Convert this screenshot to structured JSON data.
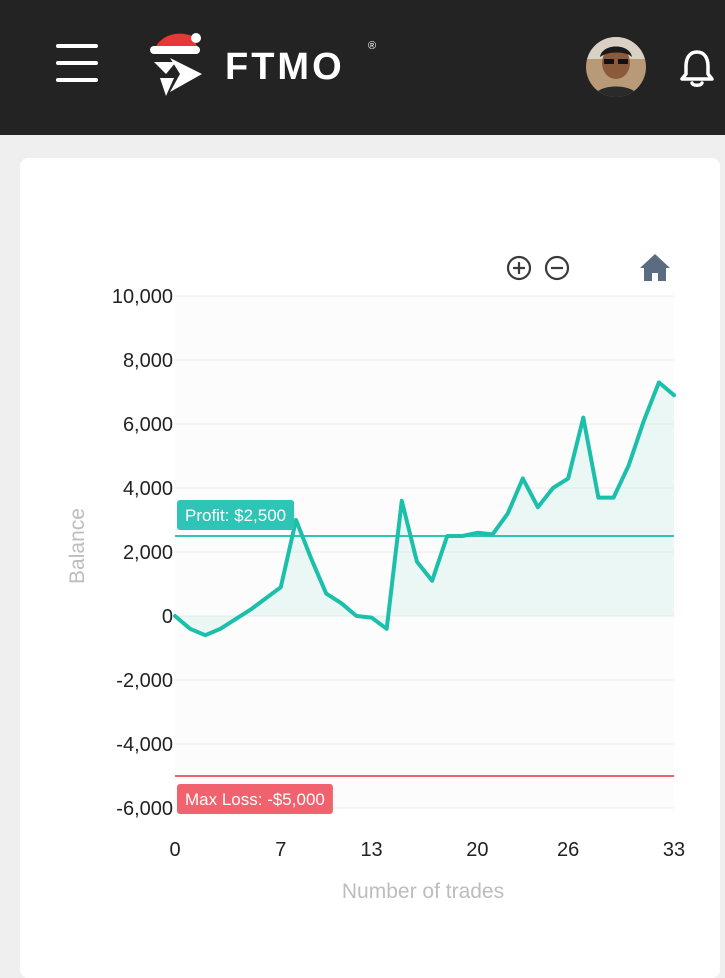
{
  "header": {
    "brand": "FTMO",
    "registered_mark": "®",
    "menu_icon": "hamburger-menu-icon",
    "logo_icon": "ftmo-logo-santa-hat-icon",
    "avatar_icon": "user-avatar",
    "bell_icon": "bell-icon",
    "background": "#232323"
  },
  "toolbar": {
    "zoom_in_icon": "zoom-in-icon",
    "zoom_out_icon": "zoom-out-icon",
    "reset_icon": "home-icon"
  },
  "chart_data": {
    "type": "area",
    "xlabel": "Number of trades",
    "ylabel": "Balance",
    "xlim": [
      0,
      33
    ],
    "ylim": [
      -6000,
      10000
    ],
    "xticks": [
      0,
      7,
      13,
      20,
      26,
      33
    ],
    "xtick_labels": [
      "0",
      "7",
      "13",
      "20",
      "26",
      "33"
    ],
    "yticks": [
      10000,
      8000,
      6000,
      4000,
      2000,
      0,
      -2000,
      -4000,
      -6000
    ],
    "ytick_labels": [
      "10,000",
      "8,000",
      "6,000",
      "4,000",
      "2,000",
      "0",
      "-2,000",
      "-4,000",
      "-6,000"
    ],
    "grid": true,
    "series": [
      {
        "color": "#1bbfaa",
        "x": [
          0,
          1,
          2,
          3,
          4,
          5,
          6,
          7,
          8,
          9,
          10,
          11,
          12,
          13,
          14,
          15,
          16,
          17,
          18,
          19,
          20,
          21,
          22,
          23,
          24,
          25,
          26,
          27,
          28,
          29,
          30,
          31,
          32,
          33
        ],
        "y": [
          0,
          -400,
          -600,
          -400,
          -100,
          200,
          550,
          900,
          3000,
          1800,
          700,
          400,
          0,
          -50,
          -400,
          3600,
          1700,
          1100,
          2500,
          2500,
          2600,
          2550,
          3200,
          4300,
          3400,
          4000,
          4300,
          6200,
          3700,
          3700,
          4700,
          6100,
          7300,
          6900
        ]
      }
    ],
    "annotations": [
      {
        "label": "Profit: $2,500",
        "y": 2500,
        "color": "#2ec4b6"
      },
      {
        "label": "Max Loss: -$5,000",
        "y": -5000,
        "color": "#f0626e"
      }
    ]
  }
}
